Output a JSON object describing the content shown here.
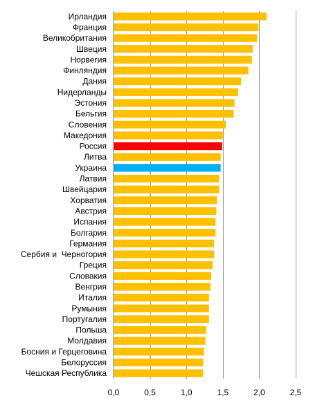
{
  "chart_data": {
    "type": "bar",
    "orientation": "horizontal",
    "title": "",
    "xlabel": "",
    "ylabel": "",
    "xlim": [
      0,
      2.5
    ],
    "x_ticks": [
      0,
      0.5,
      1,
      1.5,
      2,
      2.5
    ],
    "x_tick_labels": [
      "0,0",
      "0,5",
      "1,0",
      "1,5",
      "2,0",
      "2,5"
    ],
    "grid": "vertical",
    "legend": "none",
    "default_color": "#FFC000",
    "categories": [
      "Ирландия",
      "Франция",
      "Великобритания",
      "Швеция",
      "Норвегия",
      "Финляндия",
      "Дания",
      "Нидерланды",
      "Эстония",
      "Бельгия",
      "Словения",
      "Македония",
      "Россия",
      "Литва",
      "Украина",
      "Латвия",
      "Швейцария",
      "Хорватия",
      "Австрия",
      "Испания",
      "Болгария",
      "Германия",
      "Сербия и  Черногория",
      "Греция",
      "Словакия",
      "Венгрия",
      "Италия",
      "Румыния",
      "Португалия",
      "Польша",
      "Молдавия",
      "Босния и Герцеговина",
      "Белоруссия",
      "Чешская Республика"
    ],
    "values": [
      2.1,
      1.99,
      1.97,
      1.91,
      1.9,
      1.85,
      1.75,
      1.71,
      1.66,
      1.65,
      1.54,
      1.5,
      1.49,
      1.47,
      1.47,
      1.45,
      1.45,
      1.42,
      1.41,
      1.4,
      1.4,
      1.38,
      1.38,
      1.36,
      1.34,
      1.33,
      1.31,
      1.31,
      1.31,
      1.27,
      1.26,
      1.24,
      1.23,
      1.23
    ],
    "highlights": {
      "Россия": "#FF0000",
      "Украина": "#00B0F0"
    }
  }
}
